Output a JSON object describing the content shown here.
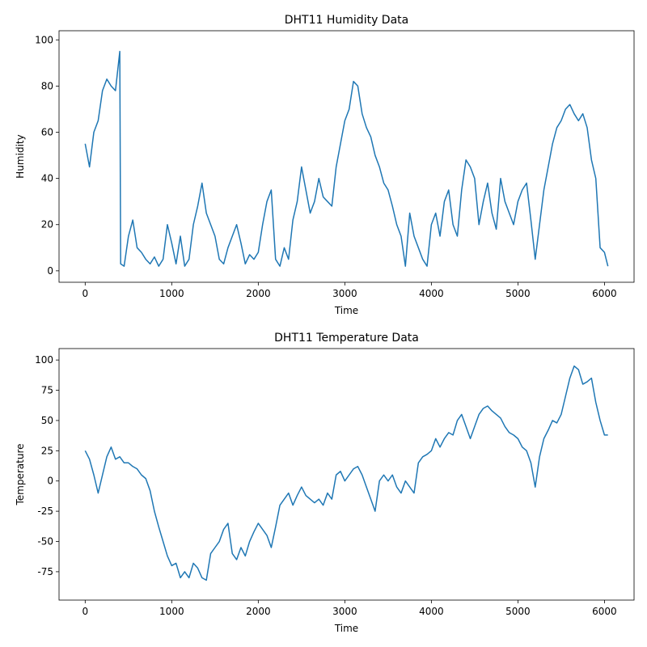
{
  "chart_data": [
    {
      "type": "line",
      "title": "DHT11 Humidity Data",
      "xlabel": "Time",
      "ylabel": "Humidity",
      "color": "#1f77b4",
      "x": [
        0,
        50,
        100,
        150,
        200,
        250,
        300,
        350,
        400,
        410,
        450,
        500,
        550,
        600,
        650,
        700,
        750,
        800,
        850,
        900,
        950,
        1000,
        1050,
        1100,
        1150,
        1200,
        1250,
        1300,
        1350,
        1400,
        1450,
        1500,
        1550,
        1600,
        1650,
        1700,
        1750,
        1800,
        1850,
        1900,
        1950,
        2000,
        2050,
        2100,
        2150,
        2200,
        2250,
        2300,
        2350,
        2400,
        2450,
        2500,
        2550,
        2600,
        2650,
        2700,
        2750,
        2800,
        2850,
        2900,
        2950,
        3000,
        3050,
        3100,
        3150,
        3200,
        3250,
        3300,
        3350,
        3400,
        3450,
        3500,
        3550,
        3600,
        3650,
        3700,
        3750,
        3800,
        3850,
        3900,
        3950,
        4000,
        4050,
        4100,
        4150,
        4200,
        4250,
        4300,
        4350,
        4400,
        4450,
        4500,
        4550,
        4600,
        4650,
        4700,
        4750,
        4800,
        4850,
        4900,
        4950,
        5000,
        5050,
        5100,
        5150,
        5200,
        5250,
        5300,
        5350,
        5400,
        5450,
        5500,
        5550,
        5600,
        5650,
        5700,
        5750,
        5800,
        5850,
        5900,
        5950,
        6000,
        6040
      ],
      "values": [
        55,
        45,
        60,
        65,
        78,
        83,
        80,
        78,
        95,
        3,
        2,
        15,
        22,
        10,
        8,
        5,
        3,
        6,
        2,
        5,
        20,
        12,
        3,
        15,
        2,
        5,
        20,
        28,
        38,
        25,
        20,
        15,
        5,
        3,
        10,
        15,
        20,
        12,
        3,
        7,
        5,
        8,
        20,
        30,
        35,
        5,
        2,
        10,
        5,
        22,
        30,
        45,
        35,
        25,
        30,
        40,
        32,
        30,
        28,
        45,
        55,
        65,
        70,
        82,
        80,
        68,
        62,
        58,
        50,
        45,
        38,
        35,
        28,
        20,
        15,
        2,
        25,
        15,
        10,
        5,
        2,
        20,
        25,
        15,
        30,
        35,
        20,
        15,
        35,
        48,
        45,
        40,
        20,
        30,
        38,
        25,
        18,
        40,
        30,
        25,
        20,
        30,
        35,
        38,
        22,
        5,
        20,
        35,
        45,
        55,
        62,
        65,
        70,
        72,
        68,
        65,
        68,
        62,
        48,
        40,
        10,
        8,
        2
      ],
      "xlim": [
        -302,
        6342
      ],
      "ylim": [
        -4.95,
        103.95
      ],
      "xticks": [
        0,
        1000,
        2000,
        3000,
        4000,
        5000,
        6000
      ],
      "yticks": [
        0,
        20,
        40,
        60,
        80,
        100
      ]
    },
    {
      "type": "line",
      "title": "DHT11 Temperature Data",
      "xlabel": "Time",
      "ylabel": "Temperature",
      "color": "#1f77b4",
      "x": [
        0,
        50,
        100,
        150,
        200,
        250,
        300,
        350,
        400,
        410,
        450,
        500,
        550,
        600,
        650,
        700,
        750,
        800,
        850,
        900,
        950,
        1000,
        1050,
        1100,
        1150,
        1200,
        1250,
        1300,
        1350,
        1400,
        1450,
        1500,
        1550,
        1600,
        1650,
        1700,
        1750,
        1800,
        1850,
        1900,
        1950,
        2000,
        2050,
        2100,
        2150,
        2200,
        2250,
        2300,
        2350,
        2400,
        2450,
        2500,
        2550,
        2600,
        2650,
        2700,
        2750,
        2800,
        2850,
        2900,
        2950,
        3000,
        3050,
        3100,
        3150,
        3200,
        3250,
        3300,
        3350,
        3400,
        3450,
        3500,
        3550,
        3600,
        3650,
        3700,
        3750,
        3800,
        3850,
        3900,
        3950,
        4000,
        4050,
        4100,
        4150,
        4200,
        4250,
        4300,
        4350,
        4400,
        4450,
        4500,
        4550,
        4600,
        4650,
        4700,
        4750,
        4800,
        4850,
        4900,
        4950,
        5000,
        5050,
        5100,
        5150,
        5200,
        5250,
        5300,
        5350,
        5400,
        5450,
        5500,
        5550,
        5600,
        5650,
        5700,
        5750,
        5800,
        5850,
        5900,
        5950,
        6000,
        6040
      ],
      "values": [
        25,
        18,
        5,
        -10,
        5,
        20,
        28,
        18,
        20,
        19,
        15,
        15,
        12,
        10,
        5,
        2,
        -8,
        -25,
        -38,
        -50,
        -62,
        -70,
        -68,
        -80,
        -75,
        -80,
        -68,
        -72,
        -80,
        -82,
        -60,
        -55,
        -50,
        -40,
        -35,
        -60,
        -65,
        -55,
        -62,
        -50,
        -42,
        -35,
        -40,
        -45,
        -55,
        -38,
        -20,
        -15,
        -10,
        -20,
        -12,
        -5,
        -12,
        -15,
        -18,
        -15,
        -20,
        -10,
        -15,
        5,
        8,
        0,
        5,
        10,
        12,
        5,
        -5,
        -15,
        -25,
        0,
        5,
        0,
        5,
        -5,
        -10,
        0,
        -5,
        -10,
        15,
        20,
        22,
        25,
        35,
        28,
        35,
        40,
        38,
        50,
        55,
        45,
        35,
        45,
        55,
        60,
        62,
        58,
        55,
        52,
        45,
        40,
        38,
        35,
        28,
        25,
        15,
        -5,
        20,
        35,
        42,
        50,
        48,
        55,
        70,
        85,
        95,
        92,
        80,
        82,
        85,
        65,
        50,
        38,
        38
      ],
      "xlim": [
        -302,
        6342
      ],
      "ylim": [
        -98.45,
        109.45
      ],
      "xticks": [
        0,
        1000,
        2000,
        3000,
        4000,
        5000,
        6000
      ],
      "yticks": [
        -75,
        -50,
        -25,
        0,
        25,
        50,
        75,
        100
      ]
    }
  ]
}
